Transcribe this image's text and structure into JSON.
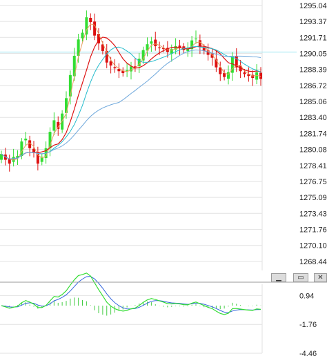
{
  "chart_data": [
    {
      "type": "candlestick",
      "title": "",
      "xlabel": "",
      "ylabel": "",
      "ylim": [
        1267.5,
        1295.6
      ],
      "grid": true,
      "y_ticks": [
        "1295.04",
        "1293.37",
        "1291.71",
        "1290.05",
        "1288.39",
        "1286.72",
        "1285.06",
        "1283.40",
        "1281.74",
        "1280.08",
        "1278.41",
        "1276.75",
        "1275.09",
        "1273.43",
        "1271.76",
        "1270.10",
        "1268.44"
      ],
      "reference_line": 1290.2,
      "close": [
        1279.6,
        1279.0,
        1278.6,
        1279.3,
        1279.4,
        1280.9,
        1281.2,
        1280.2,
        1279.7,
        1278.6,
        1279.3,
        1280.2,
        1281.9,
        1283.1,
        1282.2,
        1283.8,
        1285.4,
        1287.8,
        1289.8,
        1291.5,
        1292.2,
        1293.8,
        1293.3,
        1291.9,
        1291.1,
        1290.3,
        1289.1,
        1288.8,
        1288.5,
        1288.2,
        1288.0,
        1288.3,
        1288.7,
        1288.6,
        1289.5,
        1290.4,
        1291.0,
        1291.3,
        1290.8,
        1290.6,
        1290.5,
        1290.2,
        1290.5,
        1290.8,
        1290.6,
        1290.4,
        1290.5,
        1291.4,
        1291.6,
        1290.7,
        1290.3,
        1289.9,
        1289.6,
        1288.6,
        1287.9,
        1287.6,
        1288.1,
        1289.7,
        1288.6,
        1288.2,
        1287.9,
        1287.7,
        1287.5,
        1288.1,
        1287.4
      ]
    },
    {
      "type": "line",
      "title": "",
      "ylim": [
        -4.46,
        2.0
      ],
      "grid": true,
      "y_ticks": [
        "0.94",
        "-1.76",
        "-4.46"
      ]
    }
  ],
  "colors": {
    "up_candle": "#33dd33",
    "down_candle": "#dd1111",
    "ma_fast": "#e8a060",
    "ma_mid": "#dd1111",
    "ma_cyan": "#22bbcc",
    "ma_slow": "#6fa8dc",
    "macd_line": "#33dd33",
    "signal_line": "#3366dd",
    "histogram": "#44cc44",
    "grid": "#e2e2e2",
    "reference_line": "#9fe6f3",
    "separator": "#9a9a9a"
  },
  "window_controls": {
    "minimize_icon": "minimize-icon",
    "restore_icon": "restore-icon",
    "close_icon": "close-icon"
  }
}
